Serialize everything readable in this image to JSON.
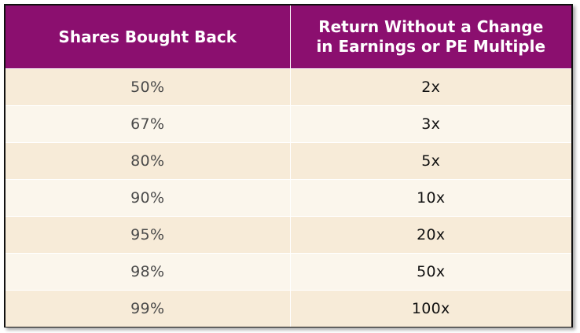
{
  "chart_data": {
    "type": "table",
    "columns": [
      "Shares Bought Back",
      "Return Without a Change in Earnings or PE Multiple"
    ],
    "header_lines": [
      [
        "Shares Bought Back"
      ],
      [
        "Return Without a Change",
        "in Earnings or PE Multiple"
      ]
    ],
    "rows": [
      [
        "50%",
        "2x"
      ],
      [
        "67%",
        "3x"
      ],
      [
        "80%",
        "5x"
      ],
      [
        "90%",
        "10x"
      ],
      [
        "95%",
        "20x"
      ],
      [
        "98%",
        "50x"
      ],
      [
        "99%",
        "100x"
      ]
    ]
  },
  "colors": {
    "header_bg": "#8b0f6f",
    "header_text": "#ffffff",
    "row_odd_bg": "#f7ebd8",
    "row_even_bg": "#fbf6ec",
    "col1_text": "#4a4a4a",
    "col2_text": "#111111",
    "frame_border": "#111111"
  }
}
